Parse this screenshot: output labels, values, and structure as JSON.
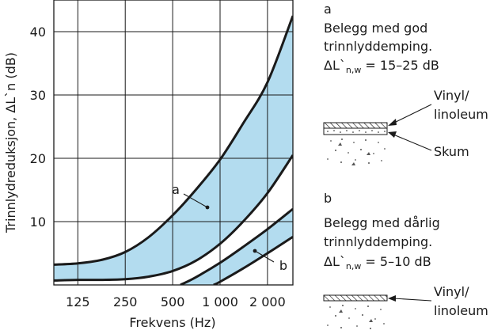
{
  "chart_data": {
    "type": "area",
    "xlabel": "Frekvens (Hz)",
    "ylabel": "Trinnlydreduksjon, ΔL`n (dB)",
    "x_scale": "log",
    "xlim": [
      88,
      2900
    ],
    "ylim": [
      0,
      45
    ],
    "grid": true,
    "x_ticks": [
      {
        "value": 125,
        "label": "125"
      },
      {
        "value": 250,
        "label": "250"
      },
      {
        "value": 500,
        "label": "500"
      },
      {
        "value": 1000,
        "label": "1 000"
      },
      {
        "value": 2000,
        "label": "2 000"
      }
    ],
    "y_ticks": [
      {
        "value": 10,
        "label": "10"
      },
      {
        "value": 20,
        "label": "20"
      },
      {
        "value": 30,
        "label": "30"
      },
      {
        "value": 40,
        "label": "40"
      }
    ],
    "bands": [
      {
        "label": "a",
        "color": "#b3dcef",
        "upper": {
          "x": [
            88,
            125,
            180,
            250,
            350,
            500,
            700,
            1000,
            1400,
            2000,
            2900
          ],
          "y": [
            3.2,
            3.4,
            4.0,
            5.2,
            7.5,
            11.0,
            15.0,
            19.8,
            25.5,
            32.0,
            42.5
          ]
        },
        "lower": {
          "x": [
            88,
            125,
            180,
            250,
            350,
            500,
            700,
            1000,
            1400,
            2000,
            2900
          ],
          "y": [
            0.7,
            0.8,
            0.8,
            0.9,
            1.3,
            2.2,
            3.8,
            6.5,
            10.0,
            14.5,
            20.5
          ]
        }
      },
      {
        "label": "b",
        "color": "#b3dcef",
        "upper": {
          "x": [
            560,
            700,
            1000,
            1400,
            2000,
            2900
          ],
          "y": [
            0,
            1.2,
            3.5,
            6.0,
            8.8,
            12.0
          ]
        },
        "lower": {
          "x": [
            910,
            1000,
            1400,
            2000,
            2900
          ],
          "y": [
            0,
            0.5,
            2.6,
            5.0,
            7.6
          ]
        }
      }
    ]
  },
  "legend": {
    "a": {
      "letter": "a",
      "line1": "Belegg med god",
      "line2": "trinnlyddemping.",
      "formula_prefix": "ΔL`",
      "formula_sub": "n,w",
      "formula_suffix": " = 15–25 dB",
      "label_top": "Vinyl/",
      "label_top2": "linoleum",
      "label_bottom": "Skum"
    },
    "b": {
      "letter": "b",
      "line1": "Belegg med dårlig",
      "line2": "trinnlyddemping.",
      "formula_prefix": "ΔL`",
      "formula_sub": "n,w",
      "formula_suffix": " = 5–10 dB",
      "label_top": "Vinyl/",
      "label_top2": "linoleum"
    }
  },
  "colors": {
    "band_fill": "#b3dcef",
    "line": "#1a1a1a",
    "grid": "#1a1a1a"
  }
}
